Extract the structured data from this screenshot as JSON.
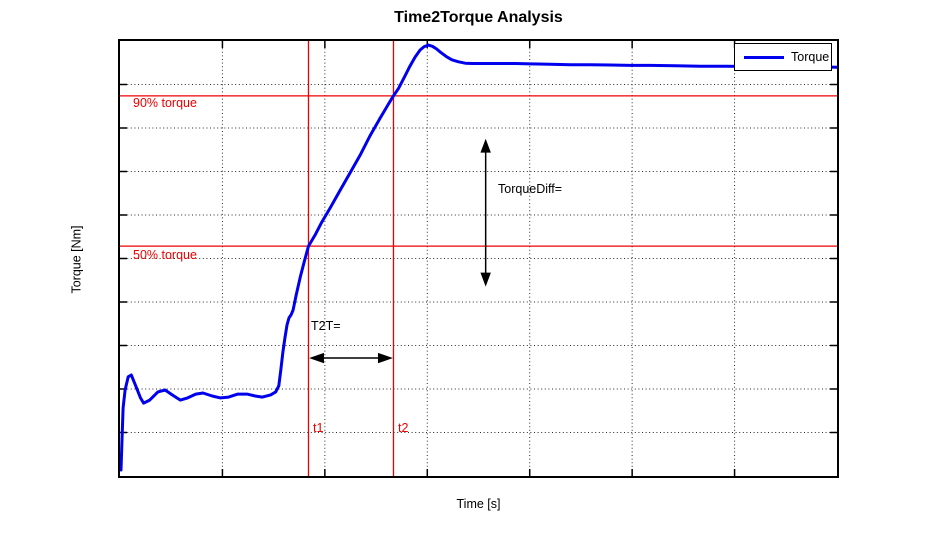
{
  "colors": {
    "curve": "#0000ee",
    "marker": "#ef0000",
    "grid": "#2a2a2a",
    "axis": "#000000"
  },
  "legend": {
    "entries": [
      {
        "label": "Torque",
        "color": "#0000ee"
      }
    ]
  },
  "chart_data": {
    "type": "line",
    "title": "Time2Torque Analysis",
    "xlabel": "Time [s]",
    "ylabel": "Torque [Nm]",
    "grid": true,
    "grid_style": "dotted",
    "legend_position": "northeast",
    "x_units": "axis divisions (no numeric tick labels shown)",
    "y_units": "percent of steady-state torque (no numeric tick labels shown)",
    "x_range": [
      0,
      7
    ],
    "x_divisions": 7,
    "y_divisions": 10,
    "y_range_pct": [
      -11.2,
      104.6
    ],
    "thresholds": [
      {
        "label": "90% torque",
        "pct": 90
      },
      {
        "label": "50% torque",
        "pct": 50
      }
    ],
    "event_lines": [
      {
        "label": "t1",
        "x": 1.84
      },
      {
        "label": "t2",
        "x": 2.67
      }
    ],
    "arrows": [
      {
        "name": "torquediff-arrow",
        "orientation": "vertical",
        "x": 3.57,
        "pct_from": 39.6,
        "pct_to": 78.2,
        "label": "TorqueDiff="
      },
      {
        "name": "t2t-arrow",
        "orientation": "horizontal",
        "pct_y": 20.2,
        "x_from": 1.84,
        "x_to": 2.67,
        "label": "T2T="
      }
    ],
    "series": [
      {
        "name": "Torque",
        "color": "#0000ee",
        "points": [
          [
            0.01,
            -9.6
          ],
          [
            0.02,
            -1.6
          ],
          [
            0.03,
            6.9
          ],
          [
            0.05,
            11.7
          ],
          [
            0.08,
            15.2
          ],
          [
            0.11,
            15.7
          ],
          [
            0.15,
            13.0
          ],
          [
            0.2,
            9.6
          ],
          [
            0.23,
            8.2
          ],
          [
            0.29,
            9.0
          ],
          [
            0.37,
            11.2
          ],
          [
            0.44,
            11.7
          ],
          [
            0.51,
            10.4
          ],
          [
            0.59,
            9.0
          ],
          [
            0.66,
            9.6
          ],
          [
            0.74,
            10.6
          ],
          [
            0.81,
            10.9
          ],
          [
            0.9,
            10.1
          ],
          [
            0.98,
            9.6
          ],
          [
            1.06,
            9.8
          ],
          [
            1.15,
            10.6
          ],
          [
            1.24,
            10.6
          ],
          [
            1.32,
            10.1
          ],
          [
            1.39,
            9.8
          ],
          [
            1.47,
            10.4
          ],
          [
            1.52,
            11.2
          ],
          [
            1.55,
            12.8
          ],
          [
            1.57,
            17.0
          ],
          [
            1.59,
            21.8
          ],
          [
            1.61,
            25.5
          ],
          [
            1.63,
            29.0
          ],
          [
            1.65,
            30.9
          ],
          [
            1.67,
            31.7
          ],
          [
            1.69,
            33.0
          ],
          [
            1.72,
            37.0
          ],
          [
            1.76,
            41.8
          ],
          [
            1.8,
            46.0
          ],
          [
            1.84,
            50.0
          ],
          [
            1.91,
            53.2
          ],
          [
            1.97,
            56.4
          ],
          [
            2.05,
            60.1
          ],
          [
            2.15,
            64.9
          ],
          [
            2.25,
            69.7
          ],
          [
            2.35,
            74.5
          ],
          [
            2.44,
            79.3
          ],
          [
            2.54,
            84.1
          ],
          [
            2.62,
            87.8
          ],
          [
            2.67,
            90.0
          ],
          [
            2.72,
            92.0
          ],
          [
            2.78,
            95.2
          ],
          [
            2.83,
            97.9
          ],
          [
            2.88,
            100.3
          ],
          [
            2.93,
            102.2
          ],
          [
            2.97,
            103.1
          ],
          [
            3.01,
            103.5
          ],
          [
            3.05,
            103.2
          ],
          [
            3.09,
            102.5
          ],
          [
            3.13,
            101.6
          ],
          [
            3.19,
            100.4
          ],
          [
            3.24,
            99.6
          ],
          [
            3.3,
            99.1
          ],
          [
            3.37,
            98.7
          ],
          [
            3.44,
            98.6
          ],
          [
            3.52,
            98.6
          ],
          [
            3.62,
            98.6
          ],
          [
            3.71,
            98.6
          ],
          [
            3.86,
            98.6
          ],
          [
            4.01,
            98.5
          ],
          [
            4.2,
            98.4
          ],
          [
            4.4,
            98.3
          ],
          [
            4.59,
            98.3
          ],
          [
            4.79,
            98.2
          ],
          [
            4.98,
            98.1
          ],
          [
            5.18,
            98.1
          ],
          [
            5.42,
            98.0
          ],
          [
            5.67,
            97.9
          ],
          [
            5.91,
            97.9
          ],
          [
            6.16,
            97.8
          ],
          [
            6.4,
            97.8
          ],
          [
            6.65,
            97.7
          ],
          [
            6.84,
            97.7
          ],
          [
            7.0,
            97.6
          ]
        ]
      }
    ]
  }
}
